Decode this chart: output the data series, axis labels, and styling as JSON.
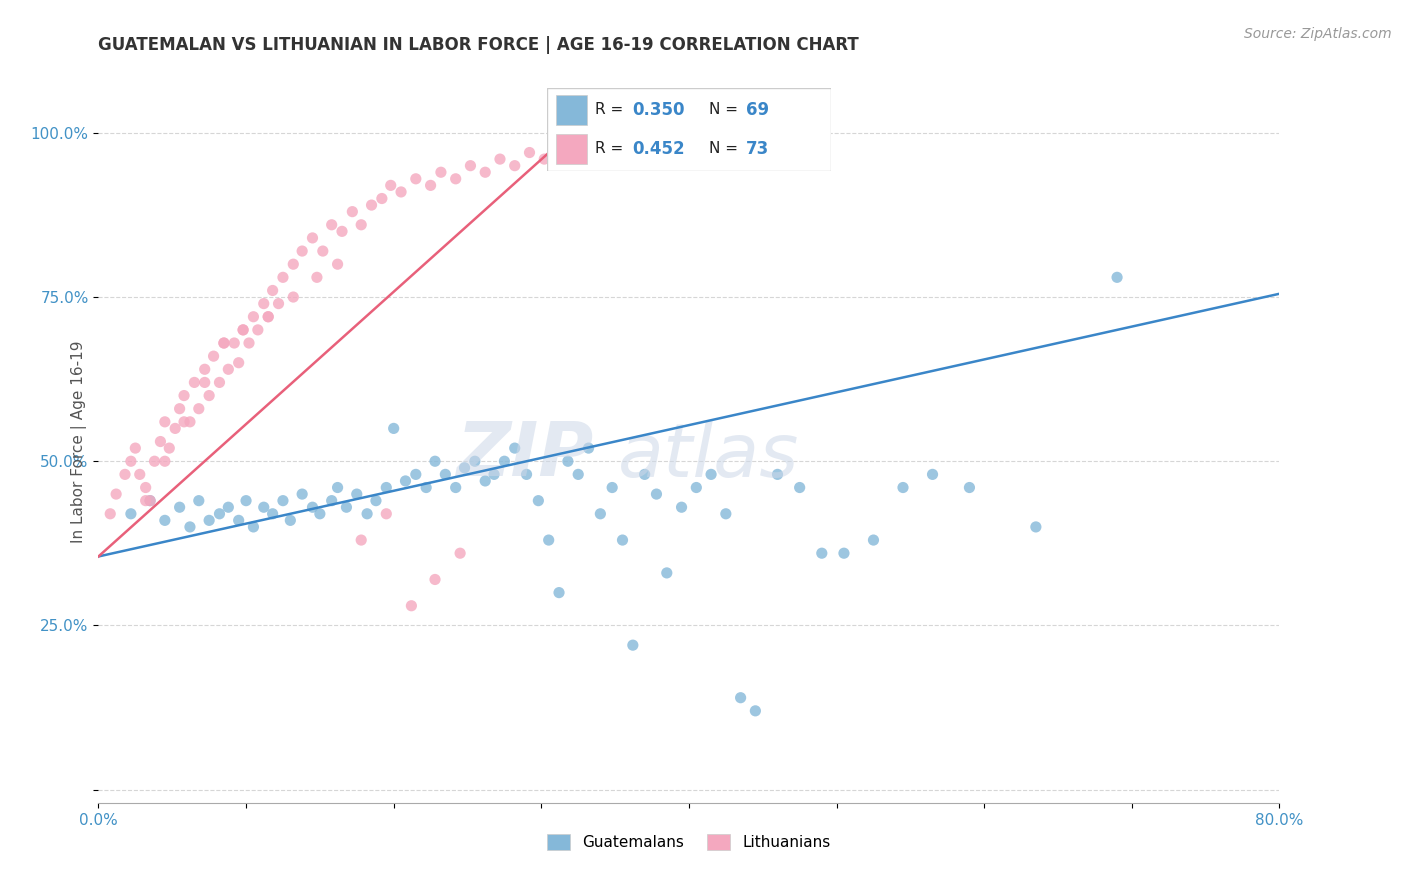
{
  "title": "GUATEMALAN VS LITHUANIAN IN LABOR FORCE | AGE 16-19 CORRELATION CHART",
  "source": "Source: ZipAtlas.com",
  "ylabel": "In Labor Force | Age 16-19",
  "legend_guatemalans": "Guatemalans",
  "legend_lithuanians": "Lithuanians",
  "r_guatemalan": 0.35,
  "n_guatemalan": 69,
  "r_lithuanian": 0.452,
  "n_lithuanian": 73,
  "blue_color": "#85b8d9",
  "pink_color": "#f4a8bf",
  "blue_line_color": "#3a86c8",
  "pink_line_color": "#e8607a",
  "xlim": [
    0.0,
    0.8
  ],
  "ylim": [
    -0.02,
    1.08
  ],
  "blue_line_x": [
    0.0,
    0.8
  ],
  "blue_line_y": [
    0.355,
    0.755
  ],
  "pink_line_x": [
    0.0,
    0.33
  ],
  "pink_line_y": [
    0.355,
    1.02
  ],
  "guat_x": [
    0.022,
    0.035,
    0.045,
    0.055,
    0.062,
    0.068,
    0.075,
    0.082,
    0.088,
    0.095,
    0.1,
    0.105,
    0.112,
    0.118,
    0.125,
    0.13,
    0.138,
    0.145,
    0.15,
    0.158,
    0.162,
    0.168,
    0.175,
    0.182,
    0.188,
    0.195,
    0.2,
    0.208,
    0.215,
    0.222,
    0.228,
    0.235,
    0.242,
    0.248,
    0.255,
    0.262,
    0.268,
    0.275,
    0.282,
    0.29,
    0.298,
    0.305,
    0.312,
    0.318,
    0.325,
    0.332,
    0.34,
    0.348,
    0.355,
    0.362,
    0.37,
    0.378,
    0.385,
    0.395,
    0.405,
    0.415,
    0.425,
    0.435,
    0.445,
    0.46,
    0.475,
    0.49,
    0.505,
    0.525,
    0.545,
    0.565,
    0.59,
    0.635,
    0.69
  ],
  "guat_y": [
    0.42,
    0.44,
    0.41,
    0.43,
    0.4,
    0.44,
    0.41,
    0.42,
    0.43,
    0.41,
    0.44,
    0.4,
    0.43,
    0.42,
    0.44,
    0.41,
    0.45,
    0.43,
    0.42,
    0.44,
    0.46,
    0.43,
    0.45,
    0.42,
    0.44,
    0.46,
    0.55,
    0.47,
    0.48,
    0.46,
    0.5,
    0.48,
    0.46,
    0.49,
    0.5,
    0.47,
    0.48,
    0.5,
    0.52,
    0.48,
    0.44,
    0.38,
    0.3,
    0.5,
    0.48,
    0.52,
    0.42,
    0.46,
    0.38,
    0.22,
    0.48,
    0.45,
    0.33,
    0.43,
    0.46,
    0.48,
    0.42,
    0.14,
    0.12,
    0.48,
    0.46,
    0.36,
    0.36,
    0.38,
    0.46,
    0.48,
    0.46,
    0.4,
    0.78
  ],
  "lith_x": [
    0.008,
    0.012,
    0.018,
    0.022,
    0.025,
    0.028,
    0.032,
    0.035,
    0.038,
    0.042,
    0.045,
    0.048,
    0.052,
    0.055,
    0.058,
    0.062,
    0.065,
    0.068,
    0.072,
    0.075,
    0.078,
    0.082,
    0.085,
    0.088,
    0.092,
    0.095,
    0.098,
    0.102,
    0.105,
    0.108,
    0.112,
    0.115,
    0.118,
    0.122,
    0.125,
    0.132,
    0.138,
    0.145,
    0.152,
    0.158,
    0.165,
    0.172,
    0.178,
    0.185,
    0.192,
    0.198,
    0.205,
    0.215,
    0.225,
    0.232,
    0.242,
    0.252,
    0.262,
    0.272,
    0.282,
    0.292,
    0.302,
    0.315,
    0.032,
    0.045,
    0.058,
    0.072,
    0.085,
    0.098,
    0.115,
    0.132,
    0.148,
    0.162,
    0.178,
    0.195,
    0.212,
    0.228,
    0.245
  ],
  "lith_y": [
    0.42,
    0.45,
    0.48,
    0.5,
    0.52,
    0.48,
    0.46,
    0.44,
    0.5,
    0.53,
    0.56,
    0.52,
    0.55,
    0.58,
    0.6,
    0.56,
    0.62,
    0.58,
    0.64,
    0.6,
    0.66,
    0.62,
    0.68,
    0.64,
    0.68,
    0.65,
    0.7,
    0.68,
    0.72,
    0.7,
    0.74,
    0.72,
    0.76,
    0.74,
    0.78,
    0.8,
    0.82,
    0.84,
    0.82,
    0.86,
    0.85,
    0.88,
    0.86,
    0.89,
    0.9,
    0.92,
    0.91,
    0.93,
    0.92,
    0.94,
    0.93,
    0.95,
    0.94,
    0.96,
    0.95,
    0.97,
    0.96,
    0.98,
    0.44,
    0.5,
    0.56,
    0.62,
    0.68,
    0.7,
    0.72,
    0.75,
    0.78,
    0.8,
    0.38,
    0.42,
    0.28,
    0.32,
    0.36
  ]
}
